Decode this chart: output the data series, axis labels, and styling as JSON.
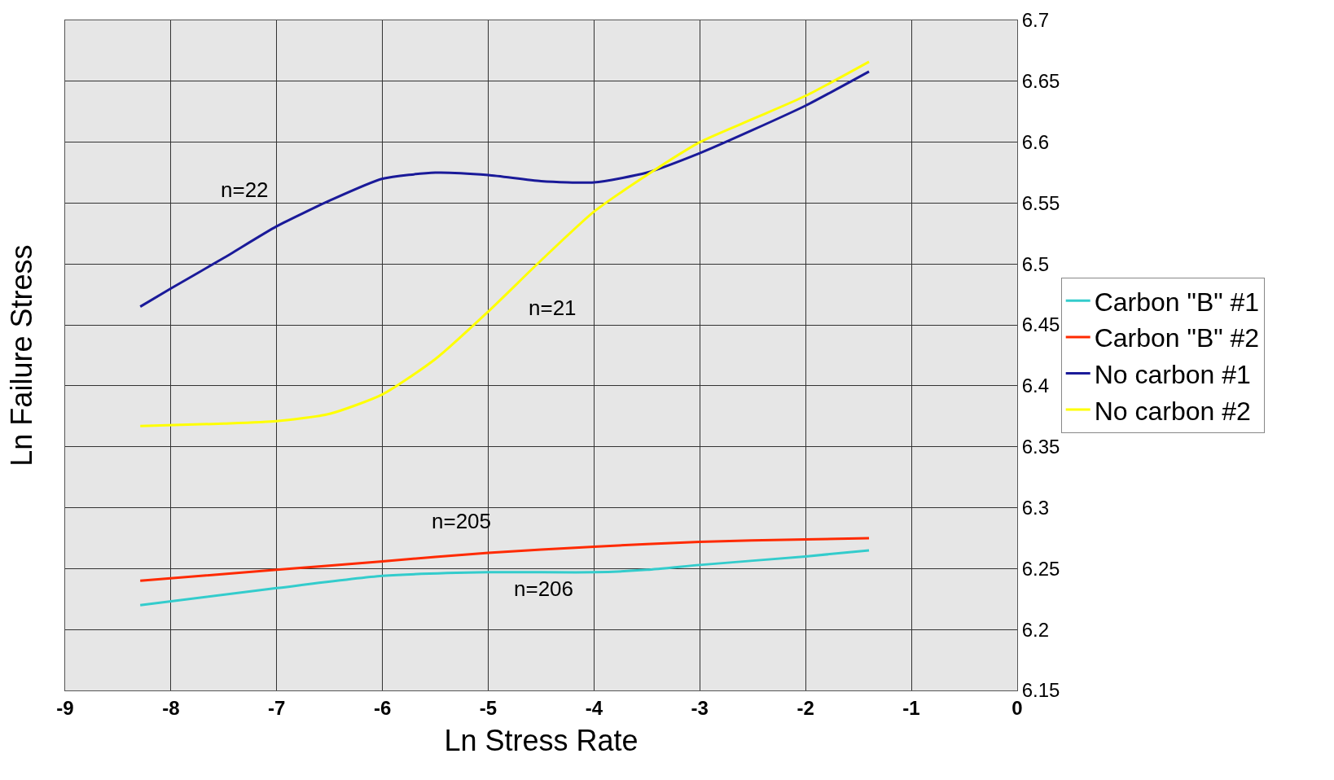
{
  "chart_data": {
    "type": "line",
    "xlabel": "Ln Stress Rate",
    "ylabel": "Ln Failure Stress",
    "series": [
      {
        "name": "Carbon \"B\" #1",
        "color": "#33cccc",
        "x": [
          -8.29,
          -7,
          -6,
          -5,
          -4,
          -3.5,
          -3,
          -2,
          -1.4
        ],
        "values": [
          6.22,
          6.234,
          6.244,
          6.247,
          6.247,
          6.249,
          6.253,
          6.26,
          6.265
        ]
      },
      {
        "name": "Carbon \"B\" #2",
        "color": "#ff2a00",
        "x": [
          -8.29,
          -7,
          -6,
          -5,
          -4,
          -3,
          -2,
          -1.4
        ],
        "values": [
          6.24,
          6.249,
          6.256,
          6.263,
          6.268,
          6.272,
          6.274,
          6.275
        ]
      },
      {
        "name": "No carbon #1",
        "color": "#1a1a99",
        "x": [
          -8.29,
          -8,
          -7.5,
          -7,
          -6.5,
          -6,
          -5.5,
          -5,
          -4.5,
          -4,
          -3.5,
          -3,
          -2.5,
          -2,
          -1.4
        ],
        "values": [
          6.465,
          6.48,
          6.505,
          6.531,
          6.552,
          6.57,
          6.575,
          6.573,
          6.568,
          6.567,
          6.575,
          6.591,
          6.61,
          6.63,
          6.658
        ]
      },
      {
        "name": "No carbon #2",
        "color": "#ffff00",
        "x": [
          -8.29,
          -7.5,
          -7,
          -6.5,
          -6,
          -5.5,
          -5,
          -4.5,
          -4,
          -3.5,
          -3,
          -2.5,
          -2,
          -1.4
        ],
        "values": [
          6.367,
          6.369,
          6.371,
          6.377,
          6.393,
          6.422,
          6.461,
          6.503,
          6.543,
          6.573,
          6.6,
          6.619,
          6.638,
          6.666
        ]
      }
    ],
    "annotations": [
      "n=22",
      "n=21",
      "n=205",
      "n=206"
    ],
    "xlim": [
      -9,
      0
    ],
    "xticks": [
      -9,
      -8,
      -7,
      -6,
      -5,
      -4,
      -3,
      -2,
      -1,
      0
    ],
    "ylim": [
      6.15,
      6.7
    ],
    "yticks": [
      6.15,
      6.2,
      6.25,
      6.3,
      6.35,
      6.4,
      6.45,
      6.5,
      6.55,
      6.6,
      6.65,
      6.7
    ],
    "grid": true,
    "legend": "right",
    "marker": "none",
    "line_style": "solid"
  }
}
